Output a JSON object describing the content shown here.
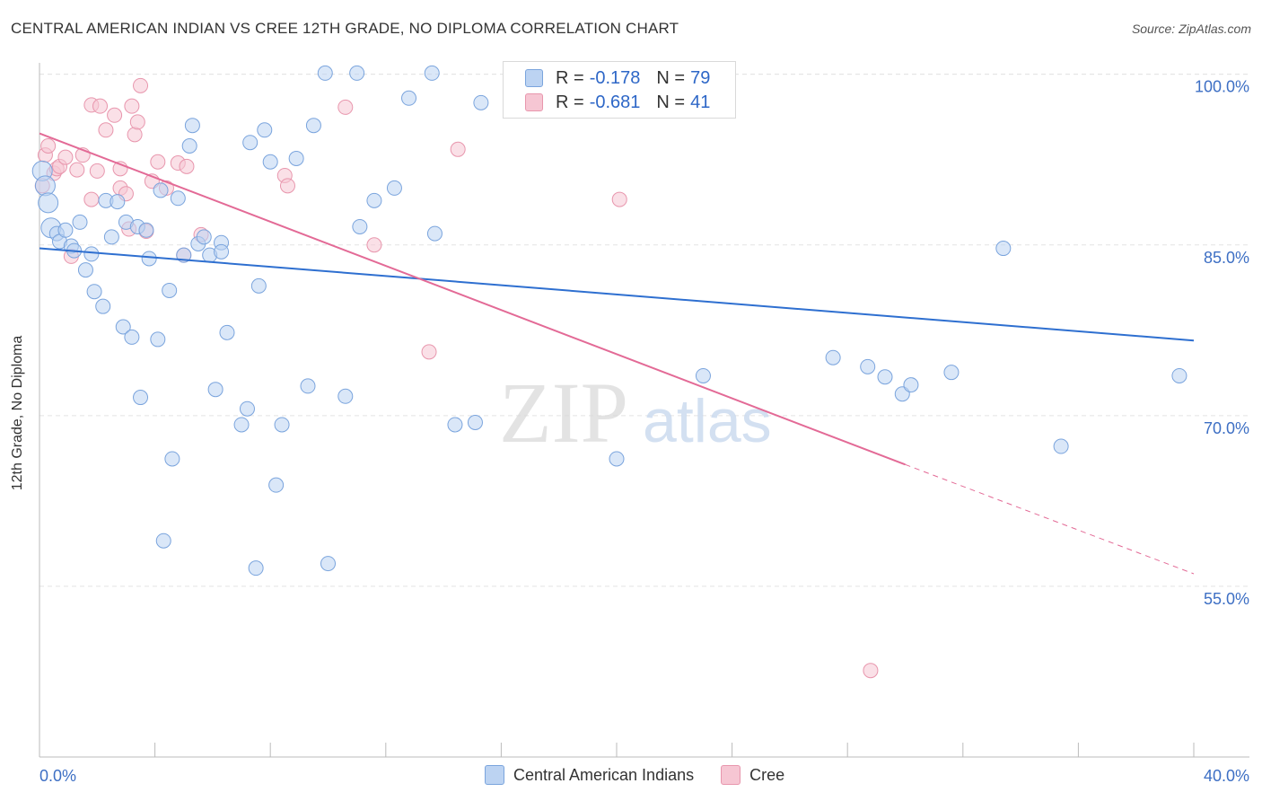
{
  "header": {
    "title": "CENTRAL AMERICAN INDIAN VS CREE 12TH GRADE, NO DIPLOMA CORRELATION CHART",
    "source": "Source: ZipAtlas.com"
  },
  "legend_top": {
    "rows": [
      {
        "r_label": "R =",
        "r_value": "-0.178",
        "n_label": "N =",
        "n_value": "79"
      },
      {
        "r_label": "R =",
        "r_value": "-0.681",
        "n_label": "N =",
        "n_value": "41"
      }
    ]
  },
  "watermark": {
    "zip": "ZIP",
    "atlas": "atlas"
  },
  "colors": {
    "blue_fill": "#bcd3f2",
    "blue_stroke": "#7aa4dd",
    "blue_line": "#2e6fd0",
    "pink_fill": "#f6c6d3",
    "pink_stroke": "#e896ad",
    "pink_line": "#e36a96",
    "axis_text": "#3d6fc4",
    "grid": "#e3e3e3"
  },
  "chart_data": {
    "type": "scatter",
    "title": "CENTRAL AMERICAN INDIAN VS CREE 12TH GRADE, NO DIPLOMA CORRELATION CHART",
    "xlabel": "",
    "ylabel": "12th Grade, No Diploma",
    "xlim": [
      0,
      40
    ],
    "ylim": [
      40,
      101
    ],
    "x_tick_labels": [
      "0.0%",
      "40.0%"
    ],
    "y_tick_labels": [
      "55.0%",
      "70.0%",
      "85.0%",
      "100.0%"
    ],
    "y_ticks": [
      55,
      70,
      85,
      100
    ],
    "series": [
      {
        "name": "Central American Indians",
        "color": "#bcd3f2",
        "r": -0.178,
        "n": 79,
        "trend": {
          "x": [
            0,
            40
          ],
          "y": [
            84.7,
            76.6
          ]
        },
        "points": [
          [
            0.1,
            91.5
          ],
          [
            0.2,
            90.2
          ],
          [
            0.3,
            88.7
          ],
          [
            0.4,
            86.5
          ],
          [
            0.6,
            86.0
          ],
          [
            0.7,
            85.3
          ],
          [
            0.9,
            86.3
          ],
          [
            1.1,
            84.9
          ],
          [
            1.2,
            84.5
          ],
          [
            1.4,
            87.0
          ],
          [
            1.6,
            82.8
          ],
          [
            1.8,
            84.2
          ],
          [
            1.9,
            80.9
          ],
          [
            2.2,
            79.6
          ],
          [
            2.3,
            88.9
          ],
          [
            2.5,
            85.7
          ],
          [
            2.7,
            88.8
          ],
          [
            2.9,
            77.8
          ],
          [
            3.0,
            87.0
          ],
          [
            3.2,
            76.9
          ],
          [
            3.4,
            86.6
          ],
          [
            3.5,
            71.6
          ],
          [
            3.7,
            86.3
          ],
          [
            3.8,
            83.8
          ],
          [
            4.1,
            76.7
          ],
          [
            4.2,
            89.8
          ],
          [
            4.3,
            59.0
          ],
          [
            4.5,
            81.0
          ],
          [
            4.6,
            66.2
          ],
          [
            4.8,
            89.1
          ],
          [
            5.0,
            84.1
          ],
          [
            5.2,
            93.7
          ],
          [
            5.3,
            95.5
          ],
          [
            5.5,
            85.1
          ],
          [
            5.7,
            85.7
          ],
          [
            5.9,
            84.1
          ],
          [
            6.1,
            72.3
          ],
          [
            6.3,
            85.2
          ],
          [
            6.3,
            84.4
          ],
          [
            6.5,
            77.3
          ],
          [
            7.0,
            69.2
          ],
          [
            7.2,
            70.6
          ],
          [
            7.3,
            94.0
          ],
          [
            7.5,
            56.6
          ],
          [
            7.6,
            81.4
          ],
          [
            7.8,
            95.1
          ],
          [
            8.0,
            92.3
          ],
          [
            8.2,
            63.9
          ],
          [
            8.4,
            69.2
          ],
          [
            8.9,
            92.6
          ],
          [
            9.3,
            72.6
          ],
          [
            9.5,
            95.5
          ],
          [
            9.9,
            100.1
          ],
          [
            10.0,
            57.0
          ],
          [
            10.6,
            71.7
          ],
          [
            11.0,
            100.1
          ],
          [
            11.1,
            86.6
          ],
          [
            11.6,
            88.9
          ],
          [
            12.3,
            90.0
          ],
          [
            12.8,
            97.9
          ],
          [
            13.6,
            100.1
          ],
          [
            13.7,
            86.0
          ],
          [
            14.4,
            69.2
          ],
          [
            15.1,
            69.4
          ],
          [
            15.3,
            97.5
          ],
          [
            17.0,
            98.2
          ],
          [
            19.0,
            100.1
          ],
          [
            20.0,
            66.2
          ],
          [
            22.0,
            100.1
          ],
          [
            23.0,
            73.5
          ],
          [
            27.5,
            75.1
          ],
          [
            28.7,
            74.3
          ],
          [
            29.3,
            73.4
          ],
          [
            29.9,
            71.9
          ],
          [
            30.2,
            72.7
          ],
          [
            31.6,
            73.8
          ],
          [
            33.4,
            84.7
          ],
          [
            35.4,
            67.3
          ],
          [
            39.5,
            73.5
          ]
        ]
      },
      {
        "name": "Cree",
        "color": "#f6c6d3",
        "r": -0.681,
        "n": 41,
        "trend": {
          "x": [
            0,
            30
          ],
          "y": [
            94.8,
            65.7
          ]
        },
        "trend_dashed": {
          "x": [
            30,
            40
          ],
          "y": [
            65.7,
            56.1
          ]
        },
        "points": [
          [
            0.1,
            90.2
          ],
          [
            0.2,
            92.9
          ],
          [
            0.3,
            93.7
          ],
          [
            0.5,
            91.3
          ],
          [
            0.6,
            91.7
          ],
          [
            0.7,
            91.9
          ],
          [
            0.9,
            92.7
          ],
          [
            1.1,
            84.0
          ],
          [
            1.3,
            91.6
          ],
          [
            1.5,
            92.9
          ],
          [
            1.8,
            97.3
          ],
          [
            1.8,
            89.0
          ],
          [
            2.0,
            91.5
          ],
          [
            2.1,
            97.2
          ],
          [
            2.3,
            95.1
          ],
          [
            2.6,
            96.4
          ],
          [
            2.8,
            91.7
          ],
          [
            2.8,
            90.0
          ],
          [
            3.0,
            89.5
          ],
          [
            3.1,
            86.4
          ],
          [
            3.2,
            97.2
          ],
          [
            3.3,
            94.7
          ],
          [
            3.4,
            95.8
          ],
          [
            3.5,
            99.0
          ],
          [
            3.7,
            86.2
          ],
          [
            3.9,
            90.6
          ],
          [
            4.1,
            92.3
          ],
          [
            4.4,
            90.0
          ],
          [
            4.8,
            92.2
          ],
          [
            5.0,
            84.1
          ],
          [
            5.1,
            91.9
          ],
          [
            5.6,
            85.9
          ],
          [
            8.5,
            91.1
          ],
          [
            8.6,
            90.2
          ],
          [
            10.6,
            97.1
          ],
          [
            11.6,
            85.0
          ],
          [
            13.5,
            75.6
          ],
          [
            14.5,
            93.4
          ],
          [
            16.5,
            97.9
          ],
          [
            20.1,
            89.0
          ],
          [
            28.8,
            47.6
          ]
        ]
      }
    ]
  },
  "bottom_legend": {
    "items": [
      {
        "label": "Central American Indians"
      },
      {
        "label": "Cree"
      }
    ]
  }
}
